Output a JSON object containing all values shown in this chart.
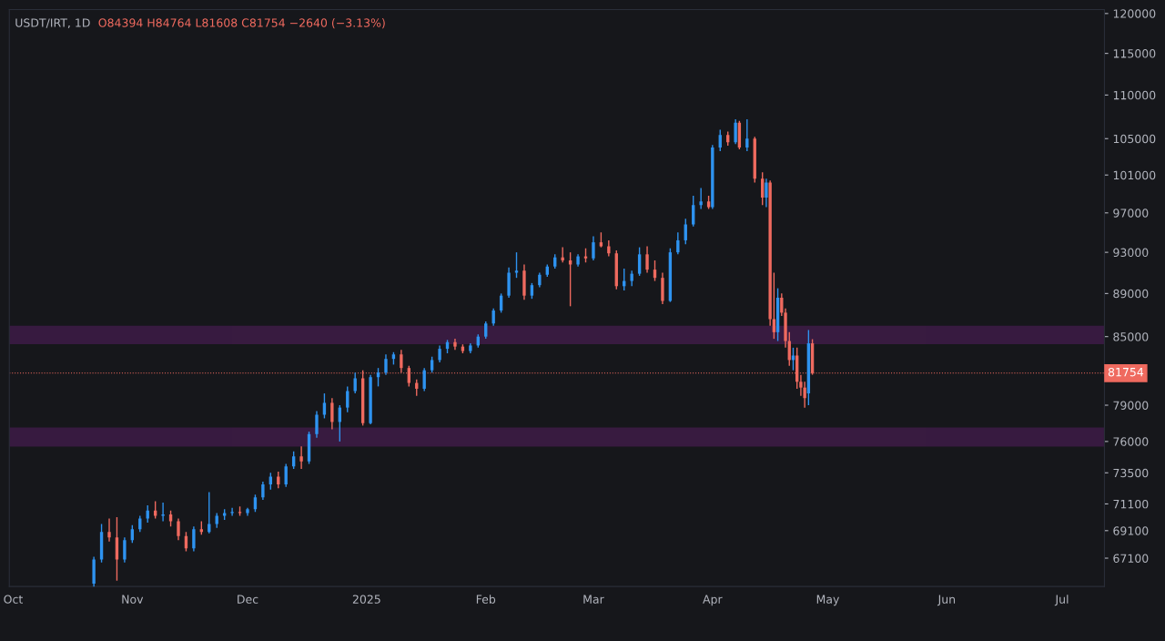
{
  "chart_data": {
    "type": "candlestick",
    "title": "USDT/IRT, 1D",
    "subtitle": "O84394 H84764 L81608 C81754 −2640 (−3.13%)",
    "x": [
      "2024-10-22",
      "2024-10-24",
      "2024-10-26",
      "2024-10-28",
      "2024-10-30",
      "2024-11-01",
      "2024-11-03",
      "2024-11-05",
      "2024-11-07",
      "2024-11-09",
      "2024-11-11",
      "2024-11-13",
      "2024-11-15",
      "2024-11-17",
      "2024-11-19",
      "2024-11-21",
      "2024-11-23",
      "2024-11-25",
      "2024-11-27",
      "2024-11-29",
      "2024-12-01",
      "2024-12-03",
      "2024-12-05",
      "2024-12-07",
      "2024-12-09",
      "2024-12-11",
      "2024-12-13",
      "2024-12-15",
      "2024-12-17",
      "2024-12-19",
      "2024-12-21",
      "2024-12-23",
      "2024-12-25",
      "2024-12-27",
      "2024-12-29",
      "2024-12-31",
      "2025-01-02",
      "2025-01-04",
      "2025-01-06",
      "2025-01-08",
      "2025-01-10",
      "2025-01-12",
      "2025-01-14",
      "2025-01-16",
      "2025-01-18",
      "2025-01-20",
      "2025-01-22",
      "2025-01-24",
      "2025-01-26",
      "2025-01-28",
      "2025-01-30",
      "2025-02-01",
      "2025-02-03",
      "2025-02-05",
      "2025-02-07",
      "2025-02-09",
      "2025-02-11",
      "2025-02-13",
      "2025-02-15",
      "2025-02-17",
      "2025-02-19",
      "2025-02-21",
      "2025-02-23",
      "2025-02-25",
      "2025-02-27",
      "2025-03-01",
      "2025-03-03",
      "2025-03-05",
      "2025-03-07",
      "2025-03-09",
      "2025-03-11",
      "2025-03-13",
      "2025-03-15",
      "2025-03-17",
      "2025-03-19",
      "2025-03-21",
      "2025-03-23",
      "2025-03-25",
      "2025-03-27",
      "2025-03-29",
      "2025-03-31",
      "2025-04-01",
      "2025-04-03",
      "2025-04-05",
      "2025-04-07",
      "2025-04-08",
      "2025-04-10",
      "2025-04-12",
      "2025-04-14",
      "2025-04-15",
      "2025-04-16",
      "2025-04-17",
      "2025-04-18",
      "2025-04-19",
      "2025-04-20",
      "2025-04-21",
      "2025-04-22",
      "2025-04-23",
      "2025-04-24",
      "2025-04-25",
      "2025-04-26",
      "2025-04-27"
    ],
    "ohlc": [
      [
        65300,
        67200,
        65000,
        67000
      ],
      [
        67000,
        69600,
        66800,
        69000
      ],
      [
        69000,
        70000,
        68300,
        68600
      ],
      [
        68600,
        70100,
        65500,
        67000
      ],
      [
        67000,
        68600,
        66800,
        68400
      ],
      [
        68400,
        69500,
        68200,
        69200
      ],
      [
        69200,
        70200,
        69000,
        70000
      ],
      [
        70000,
        71000,
        69700,
        70600
      ],
      [
        70600,
        71300,
        70000,
        70200
      ],
      [
        70200,
        71200,
        69800,
        70300
      ],
      [
        70300,
        70600,
        69400,
        69800
      ],
      [
        69800,
        70000,
        68400,
        68700
      ],
      [
        68700,
        69000,
        67600,
        67800
      ],
      [
        67800,
        69400,
        67600,
        69200
      ],
      [
        69200,
        69800,
        68800,
        69000
      ],
      [
        69000,
        72000,
        68900,
        69600
      ],
      [
        69600,
        70400,
        69300,
        70200
      ],
      [
        70200,
        70700,
        69900,
        70400
      ],
      [
        70400,
        70800,
        70200,
        70500
      ],
      [
        70500,
        70900,
        70200,
        70400
      ],
      [
        70400,
        70800,
        70200,
        70700
      ],
      [
        70700,
        71800,
        70500,
        71600
      ],
      [
        71600,
        72800,
        71400,
        72600
      ],
      [
        72600,
        73500,
        72200,
        73200
      ],
      [
        73200,
        73600,
        72300,
        72600
      ],
      [
        72600,
        74200,
        72400,
        74000
      ],
      [
        74000,
        75200,
        73800,
        74800
      ],
      [
        74800,
        75600,
        73800,
        74400
      ],
      [
        74400,
        76800,
        74200,
        76600
      ],
      [
        76600,
        78500,
        76300,
        78200
      ],
      [
        78200,
        80000,
        77900,
        79200
      ],
      [
        79200,
        79600,
        77000,
        77600
      ],
      [
        77600,
        79000,
        76000,
        78800
      ],
      [
        78800,
        80600,
        78400,
        80200
      ],
      [
        80200,
        81800,
        80000,
        81300
      ],
      [
        81300,
        82000,
        77300,
        77500
      ],
      [
        77500,
        81600,
        77400,
        81400
      ],
      [
        81400,
        82200,
        80600,
        81800
      ],
      [
        81800,
        83400,
        81600,
        83000
      ],
      [
        83000,
        83600,
        82500,
        83400
      ],
      [
        83400,
        83800,
        81800,
        82200
      ],
      [
        82200,
        82400,
        80600,
        80900
      ],
      [
        80900,
        81200,
        79800,
        80400
      ],
      [
        80400,
        82200,
        80200,
        82000
      ],
      [
        82000,
        83200,
        81800,
        82900
      ],
      [
        82900,
        84200,
        82700,
        83900
      ],
      [
        83900,
        84700,
        83500,
        84500
      ],
      [
        84500,
        84800,
        83800,
        84100
      ],
      [
        84100,
        84300,
        83500,
        83700
      ],
      [
        83700,
        84400,
        83500,
        84200
      ],
      [
        84200,
        85200,
        84000,
        85000
      ],
      [
        85000,
        86400,
        84800,
        86200
      ],
      [
        86200,
        87600,
        86000,
        87400
      ],
      [
        87400,
        89000,
        87200,
        88800
      ],
      [
        88800,
        91500,
        88600,
        91000
      ],
      [
        91000,
        93000,
        90500,
        91200
      ],
      [
        91200,
        91800,
        88400,
        88800
      ],
      [
        88800,
        90000,
        88500,
        89800
      ],
      [
        89800,
        91000,
        89600,
        90800
      ],
      [
        90800,
        91800,
        90600,
        91600
      ],
      [
        91600,
        92800,
        91400,
        92500
      ],
      [
        92500,
        93500,
        92000,
        92200
      ],
      [
        92200,
        93000,
        87800,
        91800
      ],
      [
        91800,
        92800,
        91600,
        92600
      ],
      [
        92600,
        93400,
        92000,
        92400
      ],
      [
        92400,
        94600,
        92200,
        94000
      ],
      [
        94000,
        95000,
        93500,
        93600
      ],
      [
        93600,
        94200,
        92600,
        92900
      ],
      [
        92900,
        93200,
        89400,
        89700
      ],
      [
        89700,
        91400,
        89300,
        90200
      ],
      [
        90200,
        91200,
        89700,
        90900
      ],
      [
        90900,
        93500,
        90700,
        92800
      ],
      [
        92800,
        93600,
        91000,
        91300
      ],
      [
        91300,
        92200,
        90200,
        90500
      ],
      [
        90500,
        91000,
        88000,
        88300
      ],
      [
        88300,
        93400,
        88200,
        93000
      ],
      [
        93000,
        95000,
        92800,
        94200
      ],
      [
        94200,
        96400,
        93800,
        95800
      ],
      [
        95800,
        98800,
        95600,
        97800
      ],
      [
        97800,
        99600,
        97400,
        98200
      ],
      [
        98200,
        98800,
        97400,
        97600
      ],
      [
        97600,
        104300,
        97400,
        104000
      ],
      [
        104000,
        106000,
        103600,
        105400
      ],
      [
        105400,
        105800,
        104200,
        104600
      ],
      [
        104600,
        107200,
        104400,
        106800
      ],
      [
        106800,
        107000,
        103800,
        104000
      ],
      [
        104000,
        107200,
        103600,
        105000
      ],
      [
        105000,
        105200,
        100200,
        100600
      ],
      [
        100600,
        101300,
        97800,
        98600
      ],
      [
        98600,
        100600,
        97600,
        100200
      ],
      [
        100200,
        100400,
        86000,
        86600
      ],
      [
        86600,
        91000,
        84800,
        85400
      ],
      [
        85400,
        89500,
        84600,
        88600
      ],
      [
        88600,
        89000,
        86900,
        87200
      ],
      [
        87200,
        87600,
        84000,
        84600
      ],
      [
        84600,
        85400,
        82400,
        82900
      ],
      [
        82900,
        84000,
        82000,
        83300
      ],
      [
        83300,
        84000,
        80400,
        81000
      ],
      [
        81000,
        81600,
        79800,
        80500
      ],
      [
        80500,
        81000,
        78800,
        79600
      ],
      [
        80000,
        85600,
        79000,
        84394
      ],
      [
        84394,
        84764,
        81608,
        81754
      ]
    ],
    "colors": [
      "#2e93f0",
      "#2e93f0",
      "#ef6a5f",
      "#ef6a5f",
      "#2e93f0",
      "#2e93f0",
      "#2e93f0",
      "#2e93f0",
      "#ef6a5f",
      "#2e93f0",
      "#ef6a5f",
      "#ef6a5f",
      "#ef6a5f",
      "#2e93f0",
      "#ef6a5f",
      "#2e93f0",
      "#2e93f0",
      "#2e93f0",
      "#2e93f0",
      "#ef6a5f",
      "#2e93f0",
      "#2e93f0",
      "#2e93f0",
      "#2e93f0",
      "#ef6a5f",
      "#2e93f0",
      "#2e93f0",
      "#ef6a5f",
      "#2e93f0",
      "#2e93f0",
      "#2e93f0",
      "#ef6a5f",
      "#2e93f0",
      "#2e93f0",
      "#2e93f0",
      "#ef6a5f",
      "#2e93f0",
      "#2e93f0",
      "#2e93f0",
      "#2e93f0",
      "#ef6a5f",
      "#ef6a5f",
      "#ef6a5f",
      "#2e93f0",
      "#2e93f0",
      "#2e93f0",
      "#2e93f0",
      "#ef6a5f",
      "#ef6a5f",
      "#2e93f0",
      "#2e93f0",
      "#2e93f0",
      "#2e93f0",
      "#2e93f0",
      "#2e93f0",
      "#2e93f0",
      "#ef6a5f",
      "#2e93f0",
      "#2e93f0",
      "#2e93f0",
      "#2e93f0",
      "#ef6a5f",
      "#ef6a5f",
      "#2e93f0",
      "#ef6a5f",
      "#2e93f0",
      "#ef6a5f",
      "#ef6a5f",
      "#ef6a5f",
      "#2e93f0",
      "#2e93f0",
      "#2e93f0",
      "#ef6a5f",
      "#ef6a5f",
      "#ef6a5f",
      "#2e93f0",
      "#2e93f0",
      "#2e93f0",
      "#2e93f0",
      "#2e93f0",
      "#ef6a5f",
      "#2e93f0",
      "#2e93f0",
      "#ef6a5f",
      "#2e93f0",
      "#ef6a5f",
      "#2e93f0",
      "#ef6a5f",
      "#ef6a5f",
      "#2e93f0",
      "#ef6a5f",
      "#ef6a5f",
      "#2e93f0",
      "#ef6a5f",
      "#ef6a5f",
      "#ef6a5f",
      "#2e93f0",
      "#ef6a5f",
      "#ef6a5f",
      "#ef6a5f",
      "#2e93f0",
      "#ef6a5f"
    ],
    "log": "y",
    "xlim": [
      "2024-09-30",
      "2025-07-12"
    ],
    "ylim": [
      65100,
      120500
    ],
    "xticks": [
      {
        "value": "2024-10-01",
        "label": "Oct"
      },
      {
        "value": "2024-11-01",
        "label": "Nov"
      },
      {
        "value": "2024-12-01",
        "label": "Dec"
      },
      {
        "value": "2025-01-01",
        "label": "2025"
      },
      {
        "value": "2025-02-01",
        "label": "Feb"
      },
      {
        "value": "2025-03-01",
        "label": "Mar"
      },
      {
        "value": "2025-04-01",
        "label": "Apr"
      },
      {
        "value": "2025-05-01",
        "label": "May"
      },
      {
        "value": "2025-06-01",
        "label": "Jun"
      },
      {
        "value": "2025-07-01",
        "label": "Jul"
      }
    ],
    "yticks": [
      67100,
      69100,
      71100,
      73500,
      76000,
      79000,
      85000,
      89000,
      93000,
      97000,
      101000,
      105000,
      110000,
      115000,
      120000
    ],
    "grid": false,
    "legend": false,
    "ref_lines": [
      {
        "axis": "y",
        "value": 81754,
        "label": "81754",
        "color": "#ef6a5f",
        "line_style": "dotted"
      }
    ],
    "bands": [
      {
        "axis": "y",
        "from": 84400,
        "to": 85900,
        "color": "#9c27b0"
      },
      {
        "axis": "y",
        "from": 75660,
        "to": 77060,
        "color": "#9c27b0"
      }
    ]
  }
}
